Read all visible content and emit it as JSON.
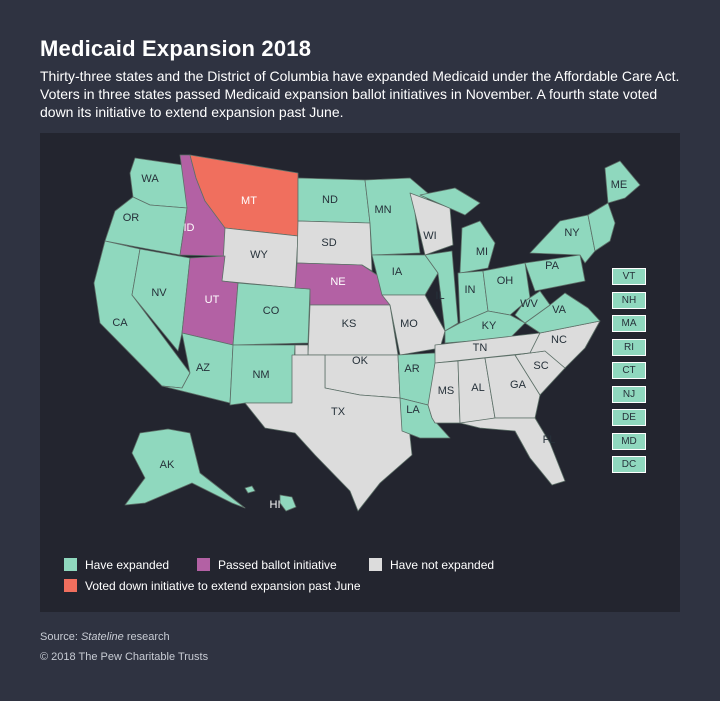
{
  "title": "Medicaid Expansion 2018",
  "subtitle": "Thirty-three states and the District of Columbia have expanded Medicaid under the Affordable Care Act. Voters in three states passed Medicaid expansion ballot initiatives in November. A fourth state voted down its initiative to extend expansion past June.",
  "colors": {
    "expanded": "#8fd8be",
    "ballot": "#b361a4",
    "voted_down": "#f06f5e",
    "not_expanded": "#dcdcdc",
    "background": "#2f3341",
    "map_panel": "#23252f"
  },
  "states": {
    "WA": "expanded",
    "OR": "expanded",
    "CA": "expanded",
    "NV": "expanded",
    "ID": "ballot",
    "MT": "voted_down",
    "WY": "not_expanded",
    "UT": "ballot",
    "AZ": "expanded",
    "CO": "expanded",
    "NM": "expanded",
    "ND": "expanded",
    "SD": "not_expanded",
    "NE": "ballot",
    "KS": "not_expanded",
    "OK": "not_expanded",
    "TX": "not_expanded",
    "MN": "expanded",
    "IA": "expanded",
    "MO": "not_expanded",
    "AR": "expanded",
    "LA": "expanded",
    "WI": "not_expanded",
    "IL": "expanded",
    "MI": "expanded",
    "IN": "expanded",
    "OH": "expanded",
    "KY": "expanded",
    "TN": "not_expanded",
    "MS": "not_expanded",
    "AL": "not_expanded",
    "GA": "not_expanded",
    "FL": "not_expanded",
    "SC": "not_expanded",
    "NC": "not_expanded",
    "VA": "expanded",
    "WV": "expanded",
    "PA": "expanded",
    "NY": "expanded",
    "ME": "expanded",
    "AK": "expanded",
    "HI": "expanded"
  },
  "small_states": [
    "VT",
    "NH",
    "MA",
    "RI",
    "CT",
    "NJ",
    "DE",
    "MD",
    "DC"
  ],
  "legend": [
    {
      "key": "expanded",
      "label": "Have expanded"
    },
    {
      "key": "ballot",
      "label": "Passed ballot initiative"
    },
    {
      "key": "not_expanded",
      "label": "Have not expanded"
    },
    {
      "key": "voted_down",
      "label": "Voted down initiative to extend expansion past June"
    }
  ],
  "source_prefix": "Source: ",
  "source_name": "Stateline",
  "source_suffix": " research",
  "copyright": "© 2018 The Pew Charitable Trusts"
}
